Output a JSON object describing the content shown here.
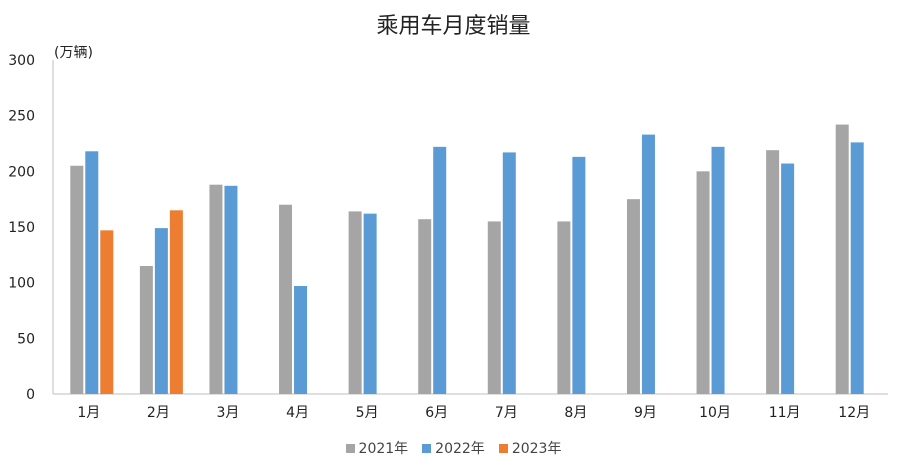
{
  "chart_data": {
    "type": "bar",
    "title": "乘用车月度销量",
    "unit_label": "(万辆)",
    "categories": [
      "1月",
      "2月",
      "3月",
      "4月",
      "5月",
      "6月",
      "7月",
      "8月",
      "9月",
      "10月",
      "11月",
      "12月"
    ],
    "series": [
      {
        "name": "2021年",
        "color": "#a5a5a5",
        "values": [
          205,
          115,
          188,
          170,
          164,
          157,
          155,
          155,
          175,
          200,
          219,
          242
        ]
      },
      {
        "name": "2022年",
        "color": "#5b9bd5",
        "values": [
          218,
          149,
          187,
          97,
          162,
          222,
          217,
          213,
          233,
          222,
          207,
          226
        ]
      },
      {
        "name": "2023年",
        "color": "#ed7d31",
        "values": [
          147,
          165,
          null,
          null,
          null,
          null,
          null,
          null,
          null,
          null,
          null,
          null
        ]
      }
    ],
    "ylim": [
      0,
      300
    ],
    "yticks": [
      "0",
      "50",
      "100",
      "150",
      "200",
      "250",
      "300"
    ],
    "legend_position": "bottom",
    "grid": false
  }
}
